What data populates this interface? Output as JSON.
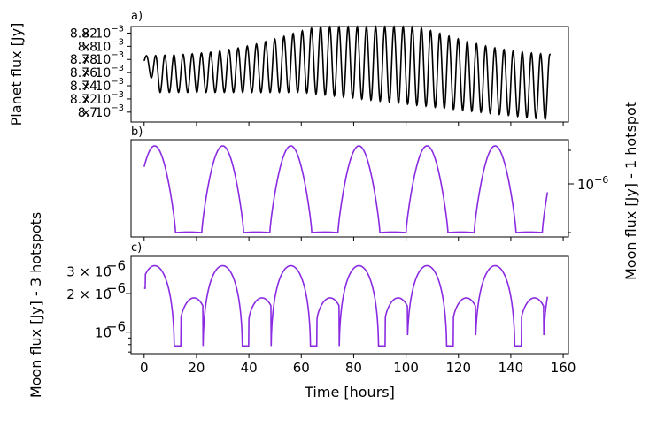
{
  "figure": {
    "width": 733,
    "height": 483
  },
  "chart_data": [
    {
      "type": "line",
      "panel": "a)",
      "ylabel": "Planet flux [Jy]",
      "xlim": [
        -5,
        162
      ],
      "ylim": [
        0.008685,
        0.00883
      ],
      "y_ticks": [
        {
          "value": 0.0087,
          "mantissa": "8.7",
          "exp": "−3"
        },
        {
          "value": 0.00872,
          "mantissa": "8.72",
          "exp": "−3"
        },
        {
          "value": 0.00874,
          "mantissa": "8.74",
          "exp": "−3"
        },
        {
          "value": 0.00876,
          "mantissa": "8.76",
          "exp": "−3"
        },
        {
          "value": 0.00878,
          "mantissa": "8.78",
          "exp": "−3"
        },
        {
          "value": 0.0088,
          "mantissa": "8.8",
          "exp": "−3"
        },
        {
          "value": 0.00882,
          "mantissa": "8.82",
          "exp": "−3"
        }
      ],
      "color": "#000000",
      "series": [
        {
          "name": "planet",
          "period_hours": 3.5,
          "min_start": 0.00873,
          "max_start": 0.008785,
          "max_peak": 0.00883,
          "min_end": 0.008688
        }
      ]
    },
    {
      "type": "line",
      "panel": "b)",
      "ylabel": "Moon flux [Jy] - 1 hotspot",
      "ylabel_side": "right",
      "yscale": "log",
      "xlim": [
        -5,
        162
      ],
      "y_ticks": [
        {
          "mantissa": "10",
          "exp": "−6"
        }
      ],
      "color": "#8a2be2",
      "series": [
        {
          "name": "moon-1-hotspot",
          "period_hours": 26.0,
          "peak_times": [
            4,
            30,
            56,
            82,
            108,
            134
          ]
        }
      ]
    },
    {
      "type": "line",
      "panel": "c)",
      "ylabel": "Moon flux [Jy] - 3 hotspots",
      "xlabel": "Time [hours]",
      "yscale": "log",
      "xlim": [
        -5,
        162
      ],
      "ylim": [
        6.8e-07,
        3.9e-06
      ],
      "x_ticks": [
        0,
        20,
        40,
        60,
        80,
        100,
        120,
        140,
        160
      ],
      "y_ticks": [
        {
          "value": 1e-06,
          "mantissa": "10",
          "exp": "−6",
          "plain": true
        },
        {
          "value": 2e-06,
          "mantissa": "2 × 10",
          "exp": "−6"
        },
        {
          "value": 3e-06,
          "mantissa": "3 × 10",
          "exp": "−6"
        }
      ],
      "color": "#8a2be2",
      "series": [
        {
          "name": "moon-3-hotspots",
          "period_hours": 26.0,
          "peak_value": 3.3e-06,
          "secondary_peak": 1.85e-06,
          "trough": 7.8e-07
        }
      ]
    }
  ]
}
